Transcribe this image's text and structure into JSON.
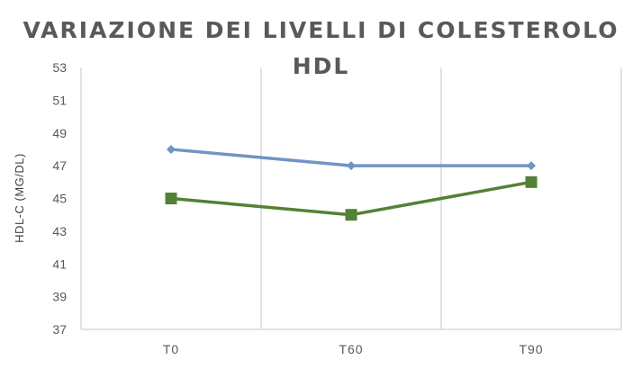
{
  "chart_data": {
    "type": "line",
    "title": "VARIAZIONE DEI LIVELLI DI COLESTEROLO HDL",
    "xlabel": "",
    "ylabel": "HDL-C (MG/DL)",
    "categories": [
      "T0",
      "T60",
      "T90"
    ],
    "ylim": [
      37,
      53
    ],
    "yticks": [
      37,
      39,
      41,
      43,
      45,
      47,
      49,
      51,
      53
    ],
    "grid": "vertical",
    "legend": "none",
    "series": [
      {
        "values": [
          48,
          47,
          47
        ],
        "color": "#7094c4",
        "marker": "diamond"
      },
      {
        "values": [
          45,
          44,
          46
        ],
        "color": "#538135",
        "marker": "square"
      }
    ]
  }
}
